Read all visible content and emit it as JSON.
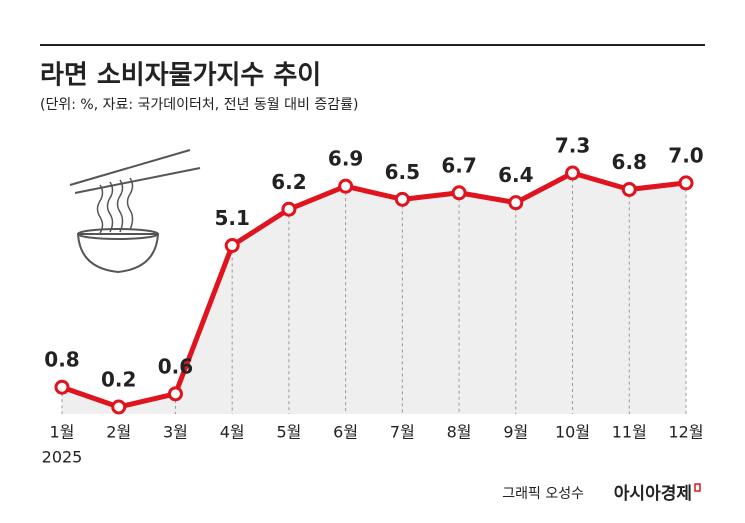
{
  "chart_data": {
    "type": "line",
    "title": "라면 소비자물가지수 추이",
    "subtitle": "(단위: %, 자료: 국가데이터처, 전년 동월 대비 증감률)",
    "categories": [
      "1월",
      "2월",
      "3월",
      "4월",
      "5월",
      "6월",
      "7월",
      "8월",
      "9월",
      "10월",
      "11월",
      "12월"
    ],
    "x_sublabel": "2025",
    "values": [
      0.8,
      0.2,
      0.6,
      5.1,
      6.2,
      6.9,
      6.5,
      6.7,
      6.4,
      7.3,
      6.8,
      7.0
    ],
    "value_labels": [
      "0.8",
      "0.2",
      "0.6",
      "5.1",
      "6.2",
      "6.9",
      "6.5",
      "6.7",
      "6.4",
      "7.3",
      "6.8",
      "7.0"
    ],
    "color": "#e0141e",
    "credit": "그래픽 오성수",
    "brand": "아시아경제"
  }
}
